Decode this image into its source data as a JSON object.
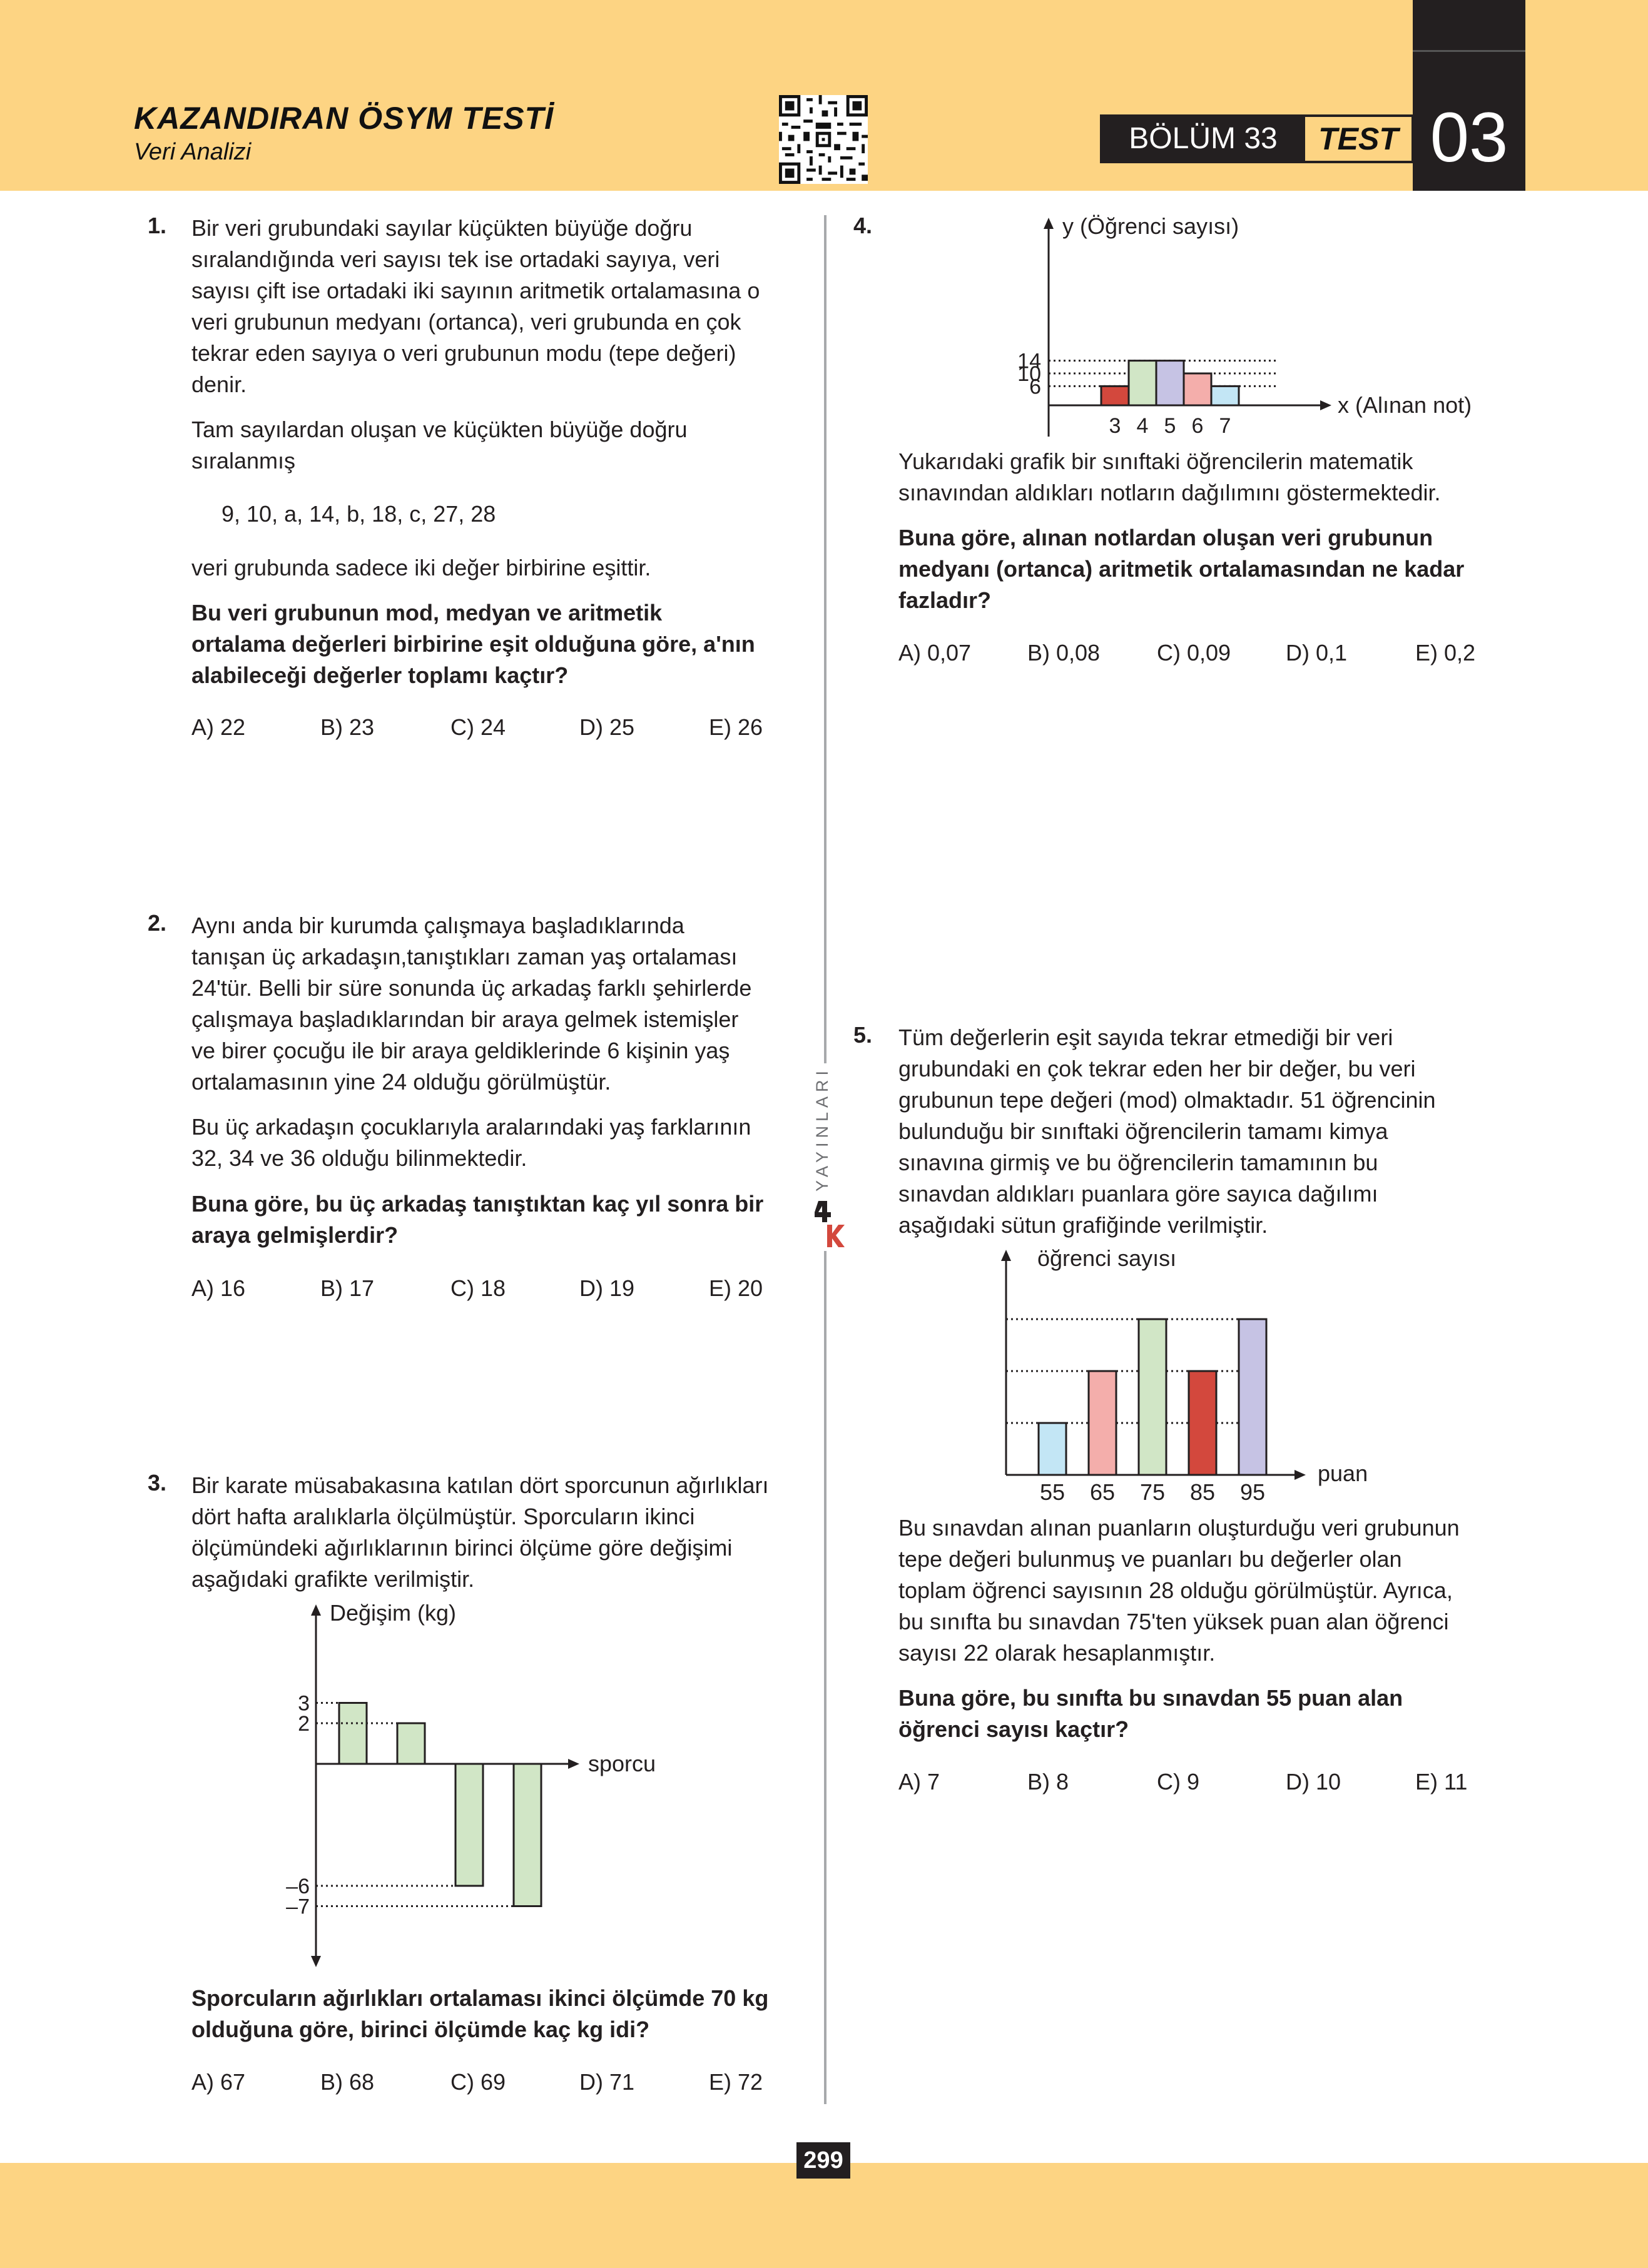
{
  "header": {
    "title": "KAZANDIRAN ÖSYM TESTİ",
    "subtitle": "Veri Analizi",
    "bolum": "BÖLÜM 33",
    "test_label": "TEST",
    "test_no": "03"
  },
  "brand": "YAYINLARI",
  "page_number": "299",
  "colors": {
    "band": "#fdd483",
    "dark": "#231f20",
    "green": "#d1e6c6",
    "purple": "#c6c3e4",
    "pink": "#f4aeab",
    "red": "#d3483d",
    "blue": "#c3e6f5"
  },
  "q1": {
    "num": "1.",
    "p1": [
      "Bir veri grubundaki sayılar küçükten büyüğe doğru",
      "sıralandığında veri sayısı tek ise ortadaki sayıya, veri",
      "sayısı çift ise ortadaki iki sayının aritmetik ortalamasına o",
      "veri grubunun medyanı (ortanca), veri grubunda en çok",
      "tekrar eden sayıya o veri grubunun modu (tepe değeri)",
      "denir."
    ],
    "p2": [
      "Tam sayılardan oluşan ve küçükten büyüğe doğru",
      "sıralanmış"
    ],
    "seq": "9, 10, a, 14, b, 18, c, 27, 28",
    "p3": "veri grubunda sadece iki değer birbirine eşittir.",
    "q": [
      "Bu veri grubunun mod, medyan ve aritmetik",
      "ortalama değerleri birbirine eşit olduğuna göre, a'nın",
      "alabileceği değerler toplamı kaçtır?"
    ],
    "choices": [
      "A) 22",
      "B) 23",
      "C) 24",
      "D) 25",
      "E) 26"
    ]
  },
  "q2": {
    "num": "2.",
    "p1": [
      "Aynı anda bir kurumda çalışmaya başladıklarında",
      "tanışan üç arkadaşın,tanıştıkları zaman yaş ortalaması",
      "24'tür. Belli bir süre sonunda üç arkadaş farklı şehirlerde",
      "çalışmaya başladıklarından bir araya gelmek istemişler",
      "ve birer çocuğu ile bir araya geldiklerinde 6 kişinin yaş",
      "ortalamasının yine 24 olduğu görülmüştür."
    ],
    "p2": [
      "Bu üç arkadaşın çocuklarıyla aralarındaki yaş farklarının",
      "32, 34 ve 36 olduğu bilinmektedir."
    ],
    "q": [
      "Buna göre, bu üç arkadaş tanıştıktan kaç yıl sonra bir",
      "araya gelmişlerdir?"
    ],
    "choices": [
      "A) 16",
      "B) 17",
      "C) 18",
      "D) 19",
      "E) 20"
    ]
  },
  "q3": {
    "num": "3.",
    "p1": [
      "Bir karate müsabakasına katılan dört sporcunun ağırlıkları",
      "dört hafta aralıklarla ölçülmüştür. Sporcuların ikinci",
      "ölçümündeki ağırlıklarının birinci ölçüme göre değişimi",
      "aşağıdaki grafikte verilmiştir."
    ],
    "q": [
      "Sporcuların ağırlıkları ortalaması ikinci ölçümde 70 kg",
      "olduğuna göre, birinci ölçümde kaç kg idi?"
    ],
    "choices": [
      "A) 67",
      "B) 68",
      "C) 69",
      "D) 71",
      "E) 72"
    ],
    "chart_data": {
      "type": "bar",
      "ylabel": "Değişim (kg)",
      "xlabel": "sporcu",
      "values": [
        3,
        2,
        -6,
        -7
      ],
      "yticks": [
        "3",
        "2",
        "–6",
        "–7"
      ],
      "ylim": [
        -7,
        3
      ],
      "colors": [
        "#d1e6c6",
        "#d1e6c6",
        "#d1e6c6",
        "#d1e6c6"
      ]
    }
  },
  "q4": {
    "num": "4.",
    "p1": [
      "Yukarıdaki grafik bir sınıftaki öğrencilerin matematik",
      "sınavından aldıkları notların dağılımını göstermektedir."
    ],
    "q": [
      "Buna göre, alınan notlardan oluşan veri grubunun",
      "medyanı (ortanca) aritmetik ortalamasından ne kadar",
      "fazladır?"
    ],
    "choices": [
      "A) 0,07",
      "B) 0,08",
      "C) 0,09",
      "D) 0,1",
      "E) 0,2"
    ],
    "chart_data": {
      "type": "bar",
      "ylabel": "y (Öğrenci sayısı)",
      "xlabel": "x (Alınan not)",
      "categories": [
        "3",
        "4",
        "5",
        "6",
        "7"
      ],
      "values": [
        6,
        14,
        14,
        10,
        6
      ],
      "yticks": [
        "14",
        "10",
        "6"
      ],
      "ylim": [
        0,
        14
      ],
      "colors": [
        "#d3483d",
        "#d1e6c6",
        "#c6c3e4",
        "#f4aeab",
        "#c3e6f5"
      ]
    }
  },
  "q5": {
    "num": "5.",
    "p1": [
      "Tüm değerlerin eşit sayıda tekrar etmediği bir veri",
      "grubundaki en çok tekrar eden her bir değer, bu veri",
      "grubunun tepe değeri (mod) olmaktadır. 51 öğrencinin",
      "bulunduğu bir sınıftaki öğrencilerin tamamı kimya",
      "sınavına girmiş  ve bu öğrencilerin tamamının bu",
      "sınavdan aldıkları puanlara göre sayıca dağılımı",
      "aşağıdaki sütun grafiğinde verilmiştir."
    ],
    "p2": [
      "Bu sınavdan alınan puanların oluşturduğu veri grubunun",
      "tepe değeri bulunmuş ve puanları bu değerler olan",
      "toplam öğrenci sayısının 28 olduğu görülmüştür. Ayrıca,",
      "bu sınıfta bu sınavdan 75'ten yüksek puan alan öğrenci",
      "sayısı 22 olarak hesaplanmıştır."
    ],
    "q": [
      "Buna göre, bu sınıfta bu sınavdan 55 puan alan",
      "öğrenci sayısı kaçtır?"
    ],
    "choices": [
      "A) 7",
      "B) 8",
      "C) 9",
      "D) 10",
      "E) 11"
    ],
    "chart_data": {
      "type": "bar",
      "ylabel": "öğrenci sayısı",
      "xlabel": "puan",
      "categories": [
        "55",
        "65",
        "75",
        "85",
        "95"
      ],
      "levels": [
        1,
        2,
        3,
        2,
        3
      ],
      "colors": [
        "#c3e6f5",
        "#f4aeab",
        "#d1e6c6",
        "#d3483d",
        "#c6c3e4"
      ]
    }
  }
}
